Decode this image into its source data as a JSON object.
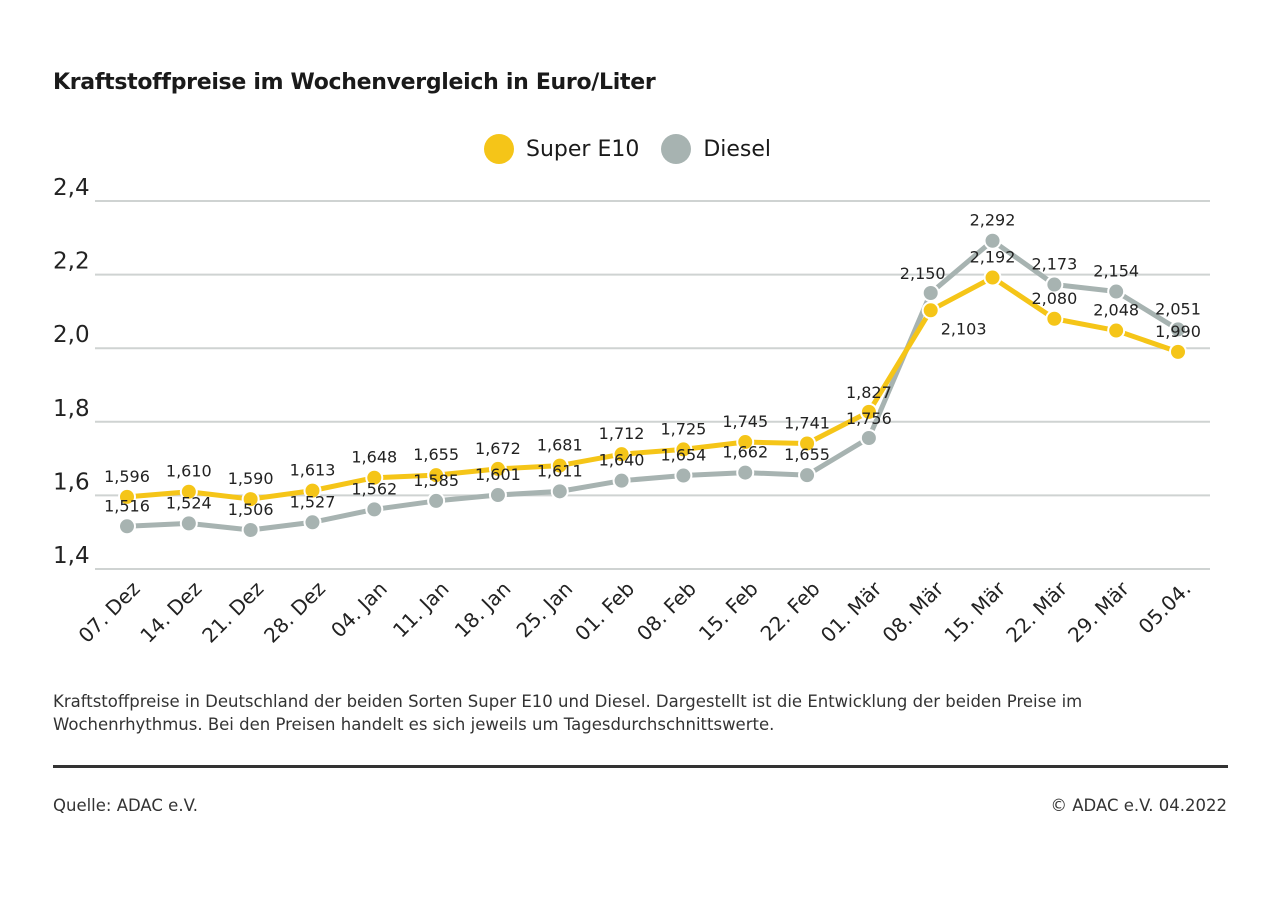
{
  "chart_data": {
    "type": "line",
    "title": "Kraftstoffpreise im Wochenvergleich in Euro/Liter",
    "categories": [
      "07. Dez",
      "14. Dez",
      "21. Dez",
      "28. Dez",
      "04. Jan",
      "11. Jan",
      "18. Jan",
      "25. Jan",
      "01. Feb",
      "08. Feb",
      "15. Feb",
      "22. Feb",
      "01. Mär",
      "08. Mär",
      "15. Mär",
      "22. Mär",
      "29. Mär",
      "05.04."
    ],
    "series": [
      {
        "name": "Super E10",
        "color": "#f5c518",
        "values": [
          1.596,
          1.61,
          1.59,
          1.613,
          1.648,
          1.655,
          1.672,
          1.681,
          1.712,
          1.725,
          1.745,
          1.741,
          1.827,
          2.103,
          2.192,
          2.08,
          2.048,
          1.99
        ],
        "labels": [
          "1,596",
          "1,610",
          "1,590",
          "1,613",
          "1,648",
          "1,655",
          "1,672",
          "1,681",
          "1,712",
          "1,725",
          "1,745",
          "1,741",
          "1,827",
          "2,103",
          "2,192",
          "2,080",
          "2,048",
          "1,990"
        ]
      },
      {
        "name": "Diesel",
        "color": "#a7b3b1",
        "values": [
          1.516,
          1.524,
          1.506,
          1.527,
          1.562,
          1.585,
          1.601,
          1.611,
          1.64,
          1.654,
          1.662,
          1.655,
          1.756,
          2.15,
          2.292,
          2.173,
          2.154,
          2.051
        ],
        "labels": [
          "1,516",
          "1,524",
          "1,506",
          "1,527",
          "1,562",
          "1,585",
          "1,601",
          "1,611",
          "1,640",
          "1,654",
          "1,662",
          "1,655",
          "1,756",
          "2,150",
          "2,292",
          "2,173",
          "2,154",
          "2,051"
        ]
      }
    ],
    "ylim": [
      1.4,
      2.4
    ],
    "yticks": [
      1.4,
      1.6,
      1.8,
      2.0,
      2.2,
      2.4
    ],
    "ytick_labels": [
      "1,4",
      "1,6",
      "1,8",
      "2,0",
      "2,2",
      "2,4"
    ],
    "grid": true,
    "legend": "top-center",
    "xlabel": "",
    "ylabel": ""
  },
  "caption": "Kraftstoffpreise in Deutschland der beiden Sorten Super E10 und Diesel. Dargestellt ist die Entwicklung der beiden Preise im Wochenrhythmus. Bei den Preisen handelt es sich jeweils um Tagesdurchschnittswerte.",
  "footer": {
    "source": "Quelle: ADAC e.V.",
    "copyright": "© ADAC e.V. 04.2022"
  },
  "colors": {
    "grid": "#cfd3d2",
    "text": "#1a1a1a"
  }
}
